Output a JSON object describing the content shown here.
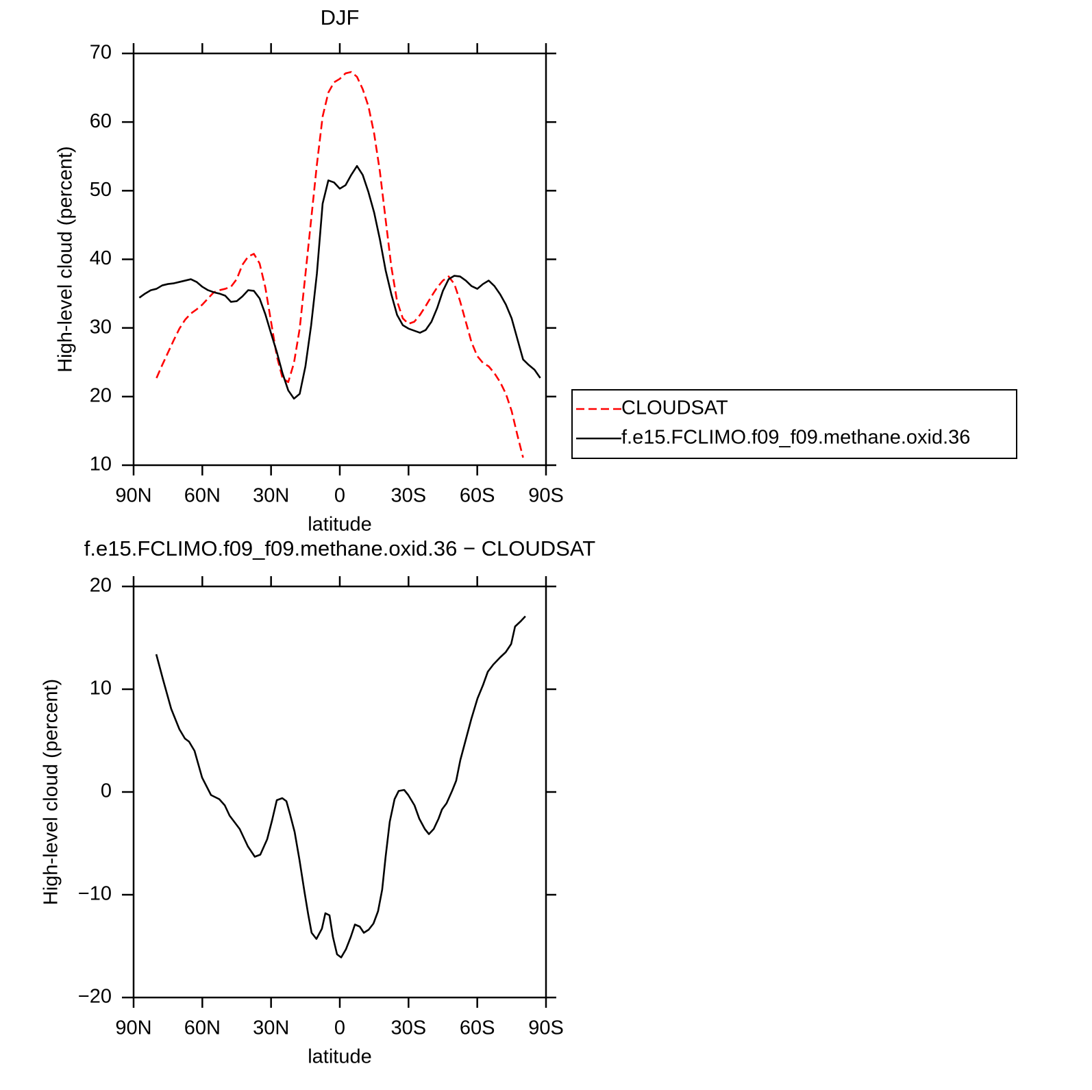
{
  "chart_data": [
    {
      "type": "line",
      "title": "DJF",
      "xlabel": "latitude",
      "ylabel": "High-level cloud (percent)",
      "x": [
        87.5,
        85,
        82.5,
        80,
        77.5,
        75,
        72.5,
        70,
        67.5,
        65,
        62.5,
        60,
        57.5,
        55,
        52.5,
        50,
        47.5,
        45,
        42.5,
        40,
        37.5,
        35,
        32.5,
        30,
        27.5,
        25,
        22.5,
        20,
        17.5,
        15,
        12.5,
        10,
        7.5,
        5,
        2.5,
        0,
        -2.5,
        -5,
        -7.5,
        -10,
        -12.5,
        -15,
        -17.5,
        -20,
        -22.5,
        -25,
        -27.5,
        -30,
        -32.5,
        -35,
        -37.5,
        -40,
        -42.5,
        -45,
        -47.5,
        -50,
        -52.5,
        -55,
        -57.5,
        -60,
        -62.5,
        -65,
        -67.5,
        -70,
        -72.5,
        -75,
        -77.5,
        -80,
        -82.5,
        -85,
        -87.5
      ],
      "series": [
        {
          "name": "CLOUDSAT",
          "color": "#ff0000",
          "dashed": true,
          "values": [
            null,
            null,
            null,
            22.7,
            24.6,
            26.4,
            28.2,
            29.9,
            31.2,
            32.1,
            32.7,
            33.4,
            34.3,
            35.2,
            35.5,
            35.7,
            36.0,
            37.1,
            39.2,
            40.4,
            40.8,
            39.4,
            35.9,
            30.9,
            25.9,
            22.7,
            22.1,
            24.9,
            29.9,
            37.8,
            45.8,
            53.8,
            60.8,
            64.3,
            65.8,
            66.3,
            67.1,
            67.3,
            66.6,
            64.8,
            62.3,
            58.3,
            52.8,
            45.8,
            38.9,
            33.9,
            31.4,
            30.6,
            30.9,
            31.9,
            33.2,
            34.6,
            35.9,
            36.9,
            37.5,
            36.4,
            33.9,
            30.9,
            27.9,
            25.9,
            24.9,
            24.4,
            23.4,
            22.1,
            20.4,
            17.9,
            14.4,
            11.1,
            null,
            null,
            null
          ]
        },
        {
          "name": "f.e15.FCLIMO.f09_f09.methane.oxid.36",
          "color": "#000000",
          "dashed": false,
          "values": [
            34.4,
            35.0,
            35.5,
            35.7,
            36.2,
            36.4,
            36.5,
            36.7,
            36.9,
            37.1,
            36.7,
            36.0,
            35.5,
            35.2,
            35.0,
            34.7,
            33.8,
            33.9,
            34.6,
            35.5,
            35.4,
            34.3,
            32.0,
            29.2,
            26.5,
            23.4,
            20.9,
            19.7,
            20.4,
            24.4,
            30.4,
            37.9,
            48.1,
            51.5,
            51.2,
            50.3,
            50.8,
            52.3,
            53.6,
            52.3,
            49.8,
            46.8,
            42.9,
            38.4,
            34.9,
            31.9,
            30.4,
            29.9,
            29.6,
            29.3,
            29.7,
            30.9,
            32.9,
            35.4,
            37.1,
            37.6,
            37.5,
            36.9,
            36.1,
            35.7,
            36.4,
            36.9,
            36.1,
            34.9,
            33.4,
            31.4,
            28.4,
            25.4,
            24.6,
            23.9,
            22.7
          ]
        }
      ],
      "xlim": [
        90,
        -90
      ],
      "ylim": [
        10,
        70
      ],
      "xticks": [
        {
          "value": 90,
          "label": "90N"
        },
        {
          "value": 60,
          "label": "60N"
        },
        {
          "value": 30,
          "label": "30N"
        },
        0,
        {
          "value": -30,
          "label": "30S"
        },
        {
          "value": -60,
          "label": "60S"
        },
        {
          "value": -90,
          "label": "90S"
        }
      ],
      "yticks": [
        10,
        20,
        30,
        40,
        50,
        60,
        70
      ],
      "legend": "right"
    },
    {
      "type": "line",
      "title": "f.e15.FCLIMO.f09_f09.methane.oxid.36 − CLOUDSAT",
      "xlabel": "latitude",
      "ylabel": "High-level cloud (percent)",
      "x": [
        80.1,
        77.1,
        73.6,
        70.0,
        67.6,
        65.8,
        63.4,
        60.1,
        56.2,
        52.6,
        50.2,
        48.1,
        43.7,
        40.1,
        37.1,
        34.7,
        31.7,
        29.6,
        27.5,
        25.1,
        23.3,
        21.8,
        19.7,
        17.6,
        15.5,
        13.8,
        12.3,
        10.2,
        7.8,
        6.3,
        4.5,
        3.0,
        1.2,
        -0.6,
        -2.7,
        -4.8,
        -6.6,
        -8.7,
        -10.5,
        -12.6,
        -14.7,
        -16.7,
        -18.5,
        -20.0,
        -21.8,
        -23.9,
        -25.7,
        -28.1,
        -29.9,
        -32.6,
        -34.7,
        -37.1,
        -38.9,
        -41.0,
        -43.1,
        -44.6,
        -46.6,
        -49.0,
        -50.8,
        -52.6,
        -55.0,
        -57.4,
        -60.1,
        -62.5,
        -64.6,
        -67.0,
        -70.0,
        -72.4,
        -74.8,
        -76.5,
        -78.9,
        -81.0
      ],
      "values": [
        13.4,
        10.9,
        8.1,
        6.1,
        5.2,
        4.9,
        4.0,
        1.4,
        -0.3,
        -0.7,
        -1.3,
        -2.3,
        -3.6,
        -5.3,
        -6.3,
        -6.1,
        -4.6,
        -2.8,
        -0.8,
        -0.6,
        -0.9,
        -2.1,
        -3.9,
        -6.6,
        -9.6,
        -11.9,
        -13.7,
        -14.3,
        -13.3,
        -11.8,
        -12.0,
        -14.1,
        -15.8,
        -16.1,
        -15.3,
        -14.1,
        -12.9,
        -13.1,
        -13.7,
        -13.4,
        -12.8,
        -11.6,
        -9.5,
        -6.3,
        -2.9,
        -0.7,
        0.1,
        0.2,
        -0.3,
        -1.3,
        -2.6,
        -3.6,
        -4.1,
        -3.6,
        -2.6,
        -1.7,
        -1.1,
        0.1,
        1.1,
        3.1,
        5.1,
        7.1,
        9.1,
        10.4,
        11.7,
        12.4,
        13.1,
        13.6,
        14.4,
        16.1,
        16.6,
        17.1
      ],
      "color": "#000000",
      "xlim": [
        90,
        -90
      ],
      "ylim": [
        -20,
        20
      ],
      "xticks": [
        {
          "value": 90,
          "label": "90N"
        },
        {
          "value": 60,
          "label": "60N"
        },
        {
          "value": 30,
          "label": "30N"
        },
        0,
        {
          "value": -30,
          "label": "30S"
        },
        {
          "value": -60,
          "label": "60S"
        },
        {
          "value": -90,
          "label": "90S"
        }
      ],
      "yticks": [
        {
          "value": -20,
          "label": "−20"
        },
        {
          "value": -10,
          "label": "−10"
        },
        0,
        10,
        20
      ]
    }
  ]
}
